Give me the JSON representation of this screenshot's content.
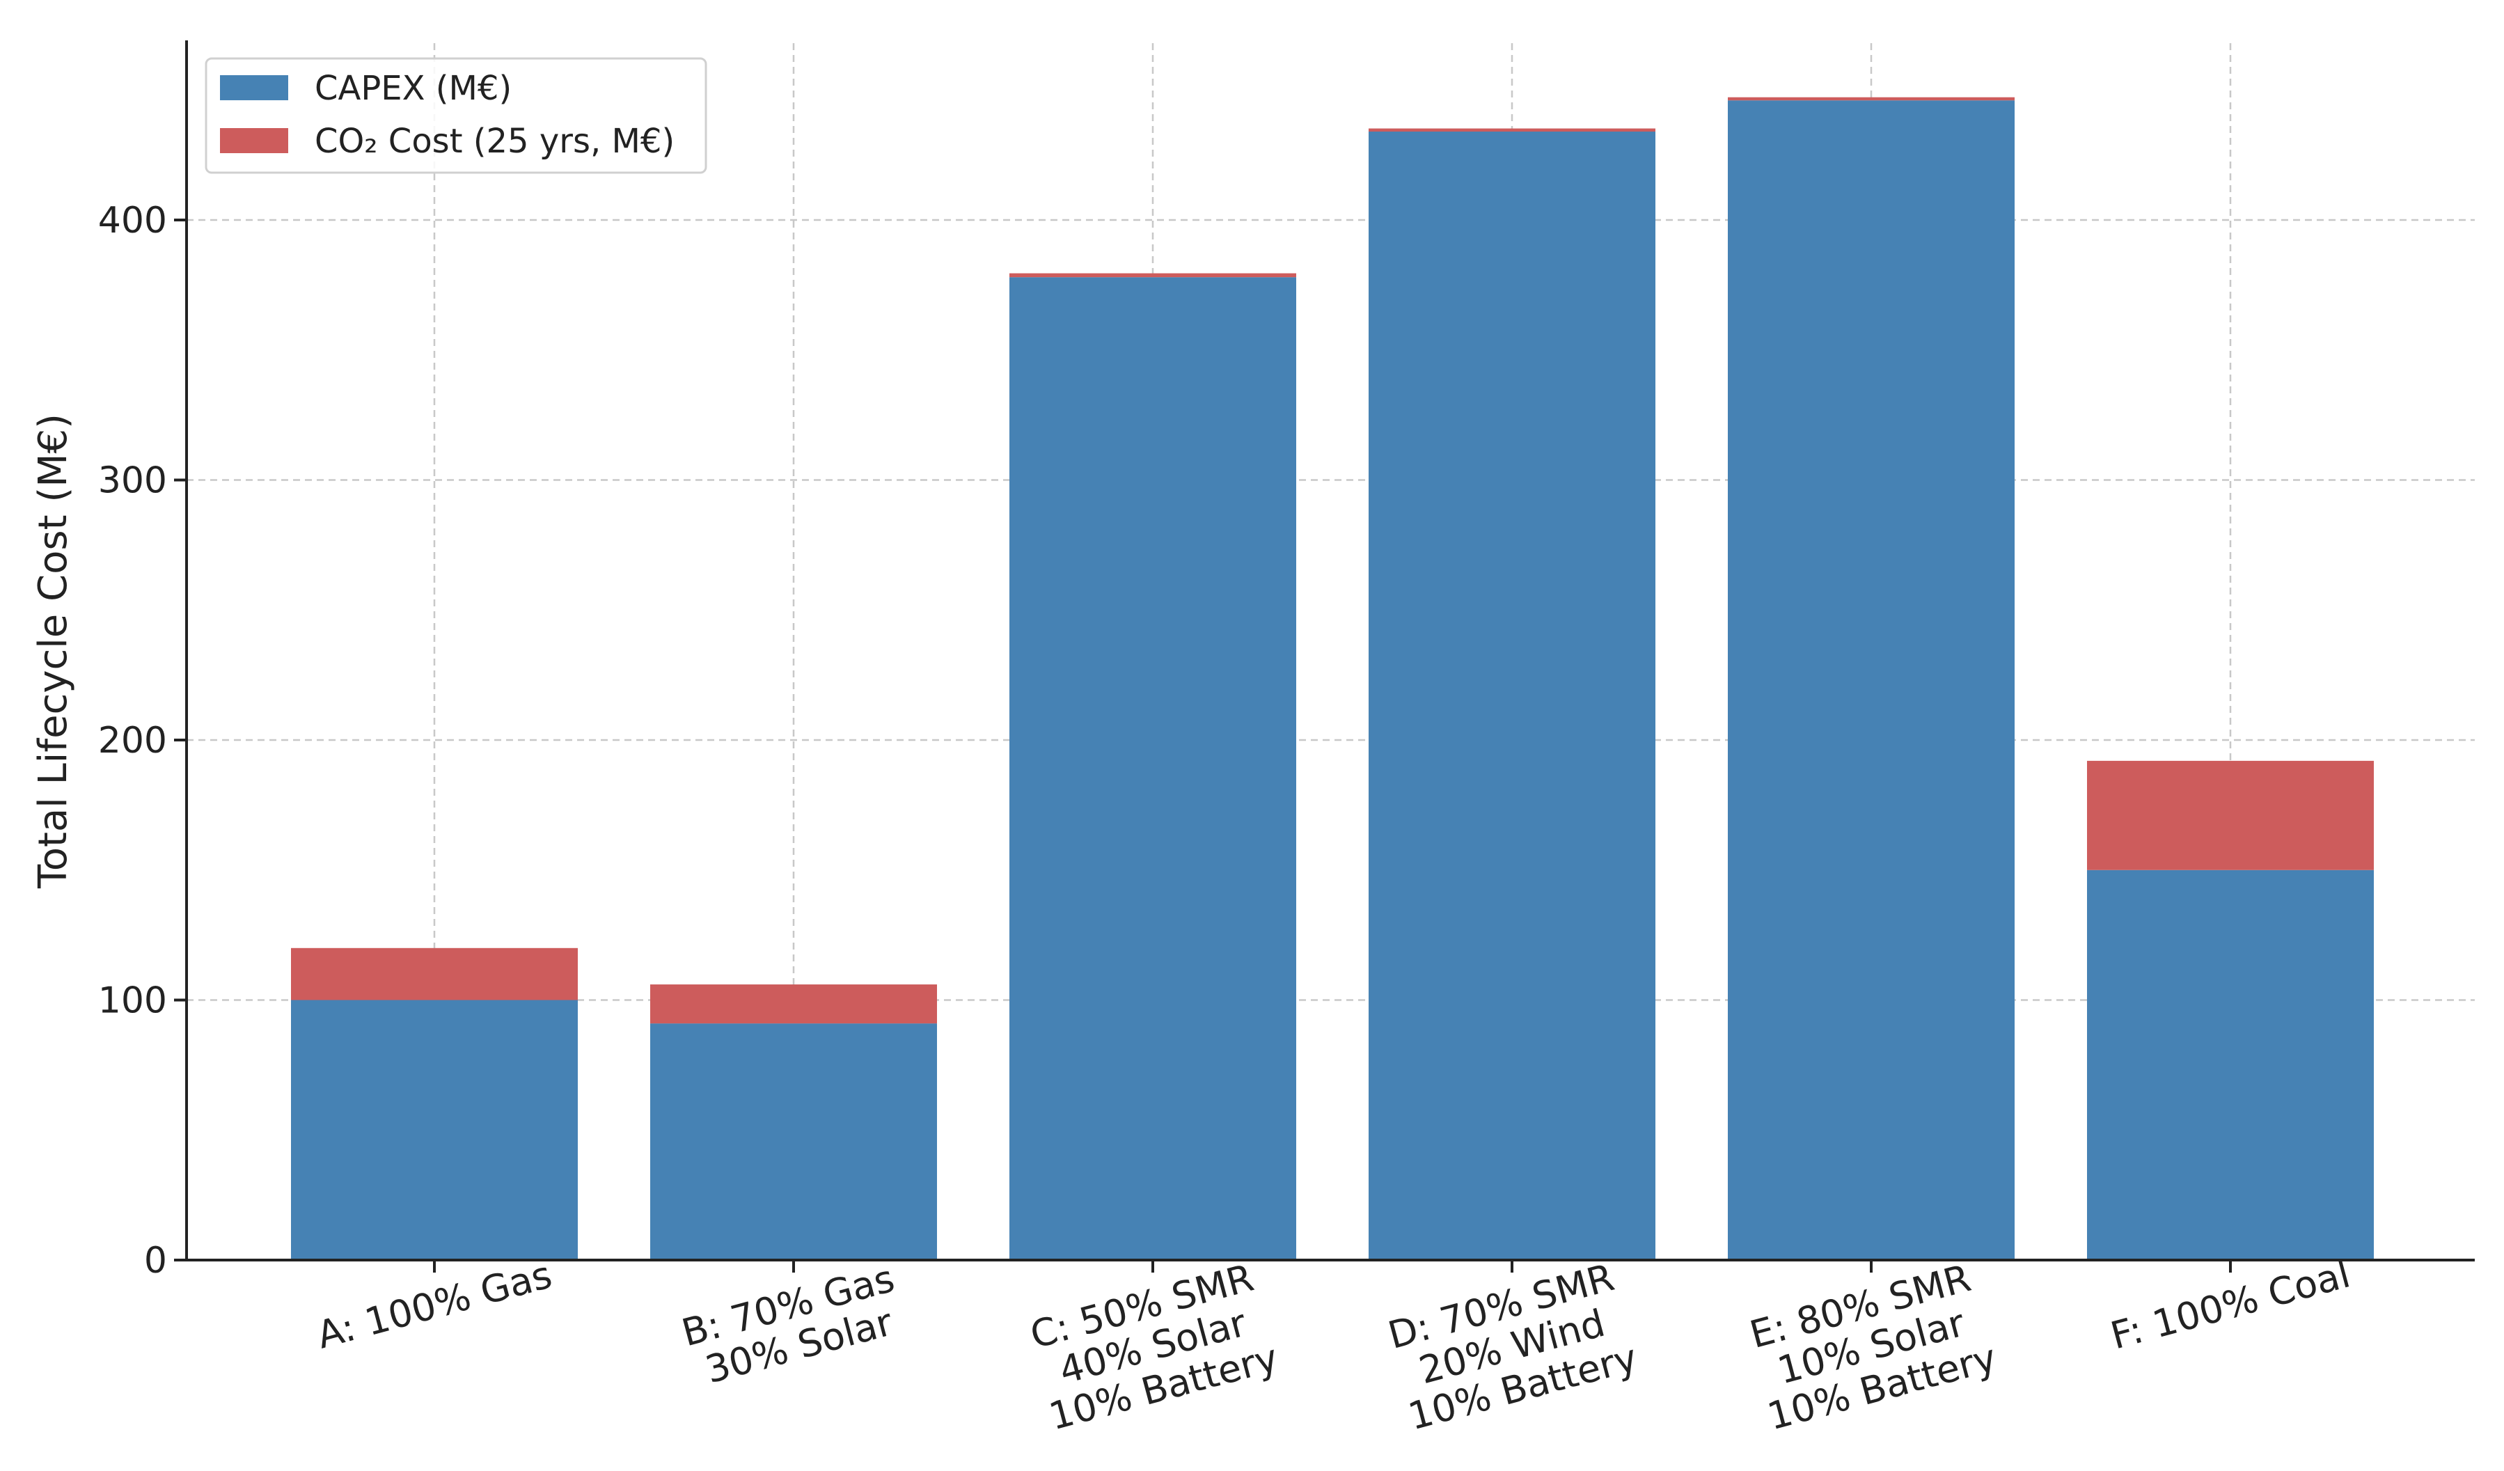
{
  "chart_data": {
    "type": "bar",
    "stacked": true,
    "title": "",
    "xlabel": "",
    "ylabel": "Total Lifecycle Cost (M€)",
    "ylim": [
      0,
      468
    ],
    "yticks": [
      0,
      100,
      200,
      300,
      400
    ],
    "grid": true,
    "legend_position": "top-left",
    "categories": [
      [
        "A: 100% Gas"
      ],
      [
        "B: 70% Gas",
        "30% Solar"
      ],
      [
        "C: 50% SMR",
        "40% Solar",
        "10% Battery"
      ],
      [
        "D: 70% SMR",
        "20% Wind",
        "10% Battery"
      ],
      [
        "E: 80% SMR",
        "10% Solar",
        "10% Battery"
      ],
      [
        "F: 100% Coal"
      ]
    ],
    "series": [
      {
        "name": "CAPEX (M€)",
        "color": "#4682B4",
        "values": [
          100,
          91,
          378,
          434,
          446,
          150
        ]
      },
      {
        "name": "CO₂ Cost (25 yrs, M€)",
        "color": "#CD5C5C",
        "values": [
          20,
          15,
          1.5,
          1.2,
          1.2,
          42
        ]
      }
    ]
  }
}
